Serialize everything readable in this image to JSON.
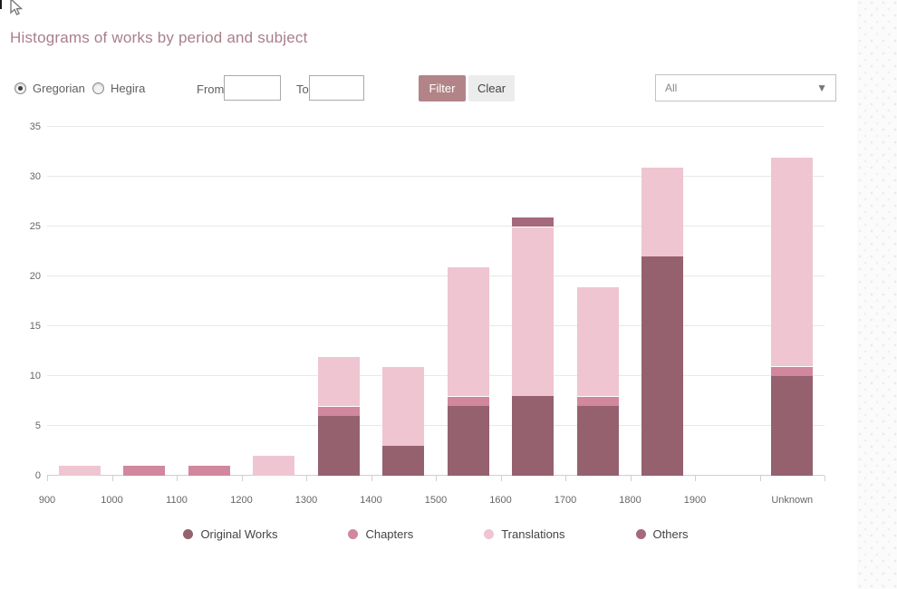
{
  "header": {
    "title": "Histograms of works by period and subject"
  },
  "controls": {
    "calendar_options": [
      {
        "label": "Gregorian",
        "selected": true
      },
      {
        "label": "Hegira",
        "selected": false
      }
    ],
    "from_label": "From",
    "from_value": "",
    "to_label": "To",
    "to_value": "",
    "filter_label": "Filter",
    "clear_label": "Clear",
    "subject_dropdown": {
      "selected": "All",
      "arrow_icon": "▼"
    }
  },
  "chart_data": {
    "type": "bar",
    "stacked": true,
    "title": "Histograms of works by period and subject",
    "xlabel": "",
    "ylabel": "",
    "categories": [
      "900",
      "1000",
      "1100",
      "1200",
      "1300",
      "1400",
      "1500",
      "1600",
      "1700",
      "1800",
      "1900",
      "Unknown"
    ],
    "series": [
      {
        "name": "Original Works",
        "color": "#95616f",
        "values": [
          0,
          0,
          0,
          0,
          6,
          3,
          7,
          8,
          7,
          22,
          0,
          10
        ]
      },
      {
        "name": "Chapters",
        "color": "#d1879d",
        "values": [
          0,
          1,
          1,
          0,
          1,
          0,
          1,
          0,
          1,
          0,
          0,
          1
        ]
      },
      {
        "name": "Translations",
        "color": "#efc5d2",
        "values": [
          1,
          0,
          0,
          2,
          5,
          8,
          13,
          17,
          11,
          9,
          0,
          21
        ]
      },
      {
        "name": "Others",
        "color": "#a5697c",
        "values": [
          0,
          0,
          0,
          0,
          0,
          0,
          0,
          1,
          0,
          0,
          0,
          0
        ]
      }
    ],
    "totals": [
      1,
      1,
      1,
      2,
      12,
      11,
      21,
      26,
      19,
      31,
      0,
      32
    ],
    "ylim": [
      0,
      35
    ],
    "ytick_step": 5,
    "grid": "horizontal",
    "legend_position": "bottom"
  },
  "colors": {
    "title_text": "#a87f8a",
    "filter_button_bg": "#b28488",
    "clear_button_bg": "#ececec",
    "gridline": "#e8e8e8",
    "axis_text": "#666666"
  }
}
